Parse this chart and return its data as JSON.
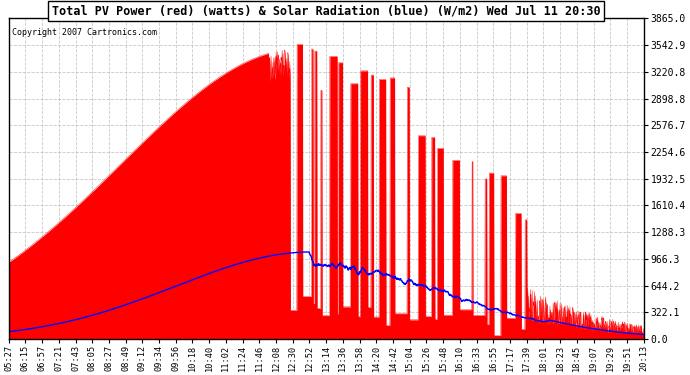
{
  "title": "Total PV Power (red) (watts) & Solar Radiation (blue) (W/m2) Wed Jul 11 20:30",
  "copyright": "Copyright 2007 Cartronics.com",
  "ymax": 3865.0,
  "yticks": [
    0.0,
    322.1,
    644.2,
    966.3,
    1288.3,
    1610.4,
    1932.5,
    2254.6,
    2576.7,
    2898.8,
    3220.8,
    3542.9,
    3865.0
  ],
  "ytick_labels": [
    "0.0",
    "322.1",
    "644.2",
    "966.3",
    "1288.3",
    "1610.4",
    "1932.5",
    "2254.6",
    "2576.7",
    "2898.8",
    "3220.8",
    "3542.9",
    "3865.0"
  ],
  "xtick_labels": [
    "05:27",
    "06:15",
    "06:57",
    "07:21",
    "07:43",
    "08:05",
    "08:27",
    "08:49",
    "09:12",
    "09:34",
    "09:56",
    "10:18",
    "10:40",
    "11:02",
    "11:24",
    "11:46",
    "12:08",
    "12:30",
    "12:52",
    "13:14",
    "13:36",
    "13:58",
    "14:20",
    "14:42",
    "15:04",
    "15:26",
    "15:48",
    "16:10",
    "16:33",
    "16:55",
    "17:17",
    "17:39",
    "18:01",
    "18:23",
    "18:45",
    "19:07",
    "19:29",
    "19:51",
    "20:13"
  ],
  "bg_color": "#ffffff",
  "fill_color": "#ff0000",
  "line_color_pv": "#ff0000",
  "line_color_solar": "#0000ff",
  "grid_color": "#bbbbbb"
}
